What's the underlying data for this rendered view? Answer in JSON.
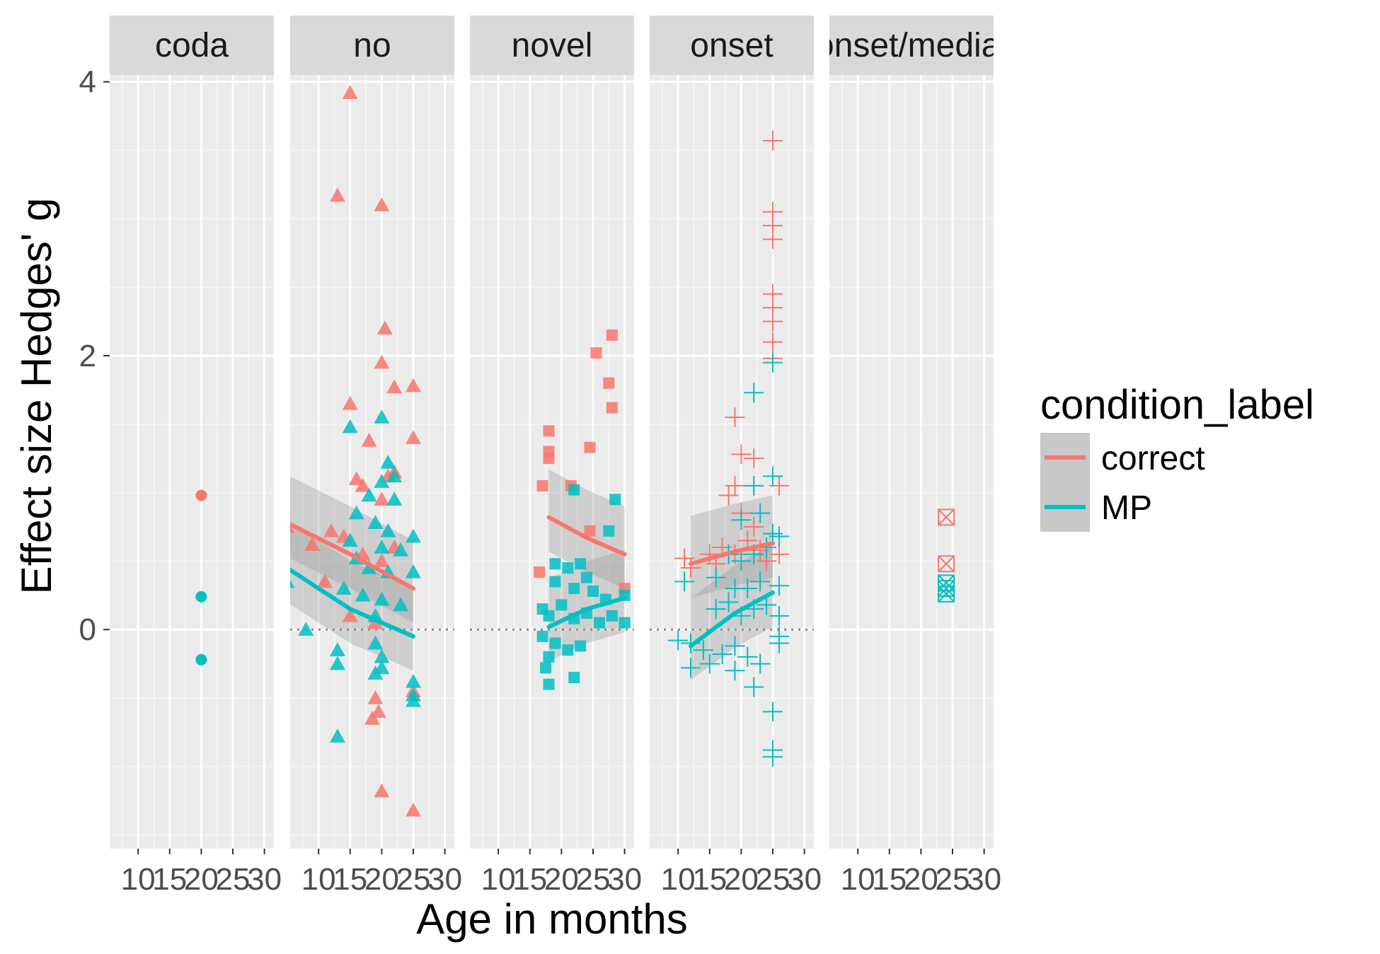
{
  "chart_data": {
    "type": "scatter",
    "facet_by": "condition",
    "facets": [
      "coda",
      "no",
      "novel",
      "onset",
      "onset/medial"
    ],
    "x_label": "Age in months",
    "y_label": "Effect size Hedges' g",
    "x_ticks": [
      10,
      15,
      20,
      25,
      30
    ],
    "y_ticks": [
      0,
      2,
      4
    ],
    "xlim": [
      5.5,
      31.5
    ],
    "ylim": [
      -1.6,
      4.05
    ],
    "grid": true,
    "legend": {
      "title": "condition_label",
      "position": "right",
      "entries": [
        {
          "label": "correct",
          "color": "#F8766D"
        },
        {
          "label": "MP",
          "color": "#00BFC4"
        }
      ]
    },
    "series": [
      {
        "name": "correct",
        "color": "#F8766D",
        "panels": {
          "coda": {
            "shape": "circle",
            "points": [
              [
                20,
                0.98
              ]
            ]
          },
          "no": {
            "shape": "triangle",
            "points": [
              [
                15,
                3.92
              ],
              [
                13,
                3.17
              ],
              [
                20,
                3.1
              ],
              [
                20.5,
                2.2
              ],
              [
                20,
                1.95
              ],
              [
                22,
                1.77
              ],
              [
                25,
                1.78
              ],
              [
                25,
                1.4
              ],
              [
                15,
                1.65
              ],
              [
                18,
                1.38
              ],
              [
                16,
                1.1
              ],
              [
                17,
                1.05
              ],
              [
                20,
                0.95
              ],
              [
                21,
                1.12
              ],
              [
                22,
                1.15
              ],
              [
                5,
                0.75
              ],
              [
                9,
                0.62
              ],
              [
                12,
                0.72
              ],
              [
                14,
                0.68
              ],
              [
                17,
                0.55
              ],
              [
                20,
                0.5
              ],
              [
                22,
                0.6
              ],
              [
                11,
                0.35
              ],
              [
                15,
                0.1
              ],
              [
                19,
                0.05
              ],
              [
                19,
                -0.5
              ],
              [
                19.5,
                -0.6
              ],
              [
                18.5,
                -0.65
              ],
              [
                25,
                -0.45
              ],
              [
                20,
                -1.18
              ],
              [
                25,
                -1.32
              ]
            ]
          },
          "novel": {
            "shape": "square",
            "points": [
              [
                18,
                1.45
              ],
              [
                18,
                1.3
              ],
              [
                18,
                1.25
              ],
              [
                25.5,
                2.02
              ],
              [
                28,
                2.15
              ],
              [
                27.5,
                1.8
              ],
              [
                28,
                1.62
              ],
              [
                24.5,
                1.33
              ],
              [
                17,
                1.05
              ],
              [
                21.5,
                1.05
              ],
              [
                16.5,
                0.42
              ],
              [
                24.5,
                0.72
              ],
              [
                30,
                0.3
              ]
            ]
          },
          "onset": {
            "shape": "plus",
            "points": [
              [
                25,
                3.57
              ],
              [
                25,
                3.05
              ],
              [
                25,
                2.95
              ],
              [
                25,
                2.85
              ],
              [
                25,
                2.45
              ],
              [
                25,
                2.35
              ],
              [
                25,
                2.25
              ],
              [
                25,
                2.1
              ],
              [
                25,
                1.98
              ],
              [
                19,
                1.55
              ],
              [
                20,
                1.28
              ],
              [
                22,
                1.25
              ],
              [
                19,
                1.05
              ],
              [
                18,
                0.98
              ],
              [
                20,
                0.85
              ],
              [
                22,
                0.75
              ],
              [
                11,
                0.52
              ],
              [
                15,
                0.55
              ],
              [
                17,
                0.6
              ],
              [
                19,
                0.55
              ],
              [
                21,
                0.65
              ],
              [
                23,
                0.58
              ],
              [
                25,
                0.7
              ],
              [
                26,
                1.05
              ],
              [
                26,
                0.55
              ],
              [
                12,
                0.45
              ],
              [
                16,
                0.48
              ],
              [
                24,
                0.5
              ]
            ]
          },
          "onset/medial": {
            "shape": "square-cross",
            "points": [
              [
                24,
                0.82
              ],
              [
                24,
                0.48
              ]
            ]
          }
        },
        "trend": {
          "no": [
            [
              5,
              0.78
            ],
            [
              15,
              0.55
            ],
            [
              25,
              0.3
            ]
          ],
          "novel": [
            [
              18,
              0.82
            ],
            [
              24,
              0.67
            ],
            [
              30,
              0.55
            ]
          ],
          "onset": [
            [
              12,
              0.48
            ],
            [
              19,
              0.57
            ],
            [
              25,
              0.63
            ]
          ]
        }
      },
      {
        "name": "MP",
        "color": "#00BFC4",
        "panels": {
          "coda": {
            "shape": "circle",
            "points": [
              [
                20,
                0.24
              ],
              [
                20,
                -0.22
              ]
            ]
          },
          "no": {
            "shape": "triangle",
            "points": [
              [
                20,
                1.55
              ],
              [
                15,
                1.48
              ],
              [
                21,
                1.22
              ],
              [
                22,
                1.12
              ],
              [
                20,
                1.08
              ],
              [
                18,
                0.98
              ],
              [
                22,
                0.95
              ],
              [
                16,
                0.85
              ],
              [
                19,
                0.78
              ],
              [
                21,
                0.72
              ],
              [
                25,
                0.68
              ],
              [
                15,
                0.65
              ],
              [
                20,
                0.6
              ],
              [
                23,
                0.58
              ],
              [
                16,
                0.52
              ],
              [
                18,
                0.45
              ],
              [
                21,
                0.42
              ],
              [
                25,
                0.42
              ],
              [
                5,
                0.35
              ],
              [
                14,
                0.3
              ],
              [
                17,
                0.25
              ],
              [
                20,
                0.22
              ],
              [
                23,
                0.18
              ],
              [
                19,
                0.1
              ],
              [
                8,
                0.0
              ],
              [
                13,
                -0.15
              ],
              [
                19,
                -0.1
              ],
              [
                20,
                -0.2
              ],
              [
                20,
                -0.28
              ],
              [
                19,
                -0.32
              ],
              [
                13,
                -0.25
              ],
              [
                25,
                -0.38
              ],
              [
                25,
                -0.48
              ],
              [
                25,
                -0.52
              ],
              [
                13,
                -0.78
              ]
            ]
          },
          "novel": {
            "shape": "square",
            "points": [
              [
                22,
                1.02
              ],
              [
                28.5,
                0.95
              ],
              [
                27.5,
                0.72
              ],
              [
                19,
                0.48
              ],
              [
                21,
                0.45
              ],
              [
                23,
                0.48
              ],
              [
                24,
                0.38
              ],
              [
                19,
                0.35
              ],
              [
                22,
                0.3
              ],
              [
                25,
                0.28
              ],
              [
                27,
                0.22
              ],
              [
                30,
                0.25
              ],
              [
                17,
                0.15
              ],
              [
                18,
                0.1
              ],
              [
                20,
                0.18
              ],
              [
                22,
                0.08
              ],
              [
                24,
                0.12
              ],
              [
                26,
                0.05
              ],
              [
                28,
                0.1
              ],
              [
                30,
                0.05
              ],
              [
                17,
                -0.05
              ],
              [
                19,
                -0.1
              ],
              [
                21,
                -0.15
              ],
              [
                18,
                -0.2
              ],
              [
                23,
                -0.12
              ],
              [
                17.5,
                -0.28
              ],
              [
                22,
                -0.35
              ],
              [
                18,
                -0.4
              ]
            ]
          },
          "onset": {
            "shape": "plus",
            "points": [
              [
                25,
                1.95
              ],
              [
                22,
                1.73
              ],
              [
                25,
                1.12
              ],
              [
                22,
                1.05
              ],
              [
                20,
                0.8
              ],
              [
                23,
                0.85
              ],
              [
                25,
                0.7
              ],
              [
                26,
                0.68
              ],
              [
                18,
                0.55
              ],
              [
                20,
                0.5
              ],
              [
                22,
                0.55
              ],
              [
                24,
                0.6
              ],
              [
                11,
                0.35
              ],
              [
                16,
                0.38
              ],
              [
                19,
                0.3
              ],
              [
                21,
                0.3
              ],
              [
                23,
                0.35
              ],
              [
                26,
                0.32
              ],
              [
                16,
                0.15
              ],
              [
                18,
                0.2
              ],
              [
                20,
                0.1
              ],
              [
                22,
                0.15
              ],
              [
                24,
                0.18
              ],
              [
                26,
                0.1
              ],
              [
                10,
                -0.08
              ],
              [
                12,
                -0.1
              ],
              [
                14,
                -0.15
              ],
              [
                17,
                -0.18
              ],
              [
                19,
                -0.12
              ],
              [
                21,
                -0.2
              ],
              [
                23,
                -0.25
              ],
              [
                26,
                -0.05
              ],
              [
                26,
                -0.1
              ],
              [
                15,
                -0.25
              ],
              [
                19,
                -0.3
              ],
              [
                12,
                -0.28
              ],
              [
                22,
                -0.42
              ],
              [
                25,
                -0.6
              ],
              [
                25,
                -0.88
              ],
              [
                25,
                -0.93
              ]
            ]
          },
          "onset/medial": {
            "shape": "square-cross",
            "points": [
              [
                24,
                0.34
              ],
              [
                24,
                0.3
              ],
              [
                24,
                0.26
              ]
            ]
          }
        },
        "trend": {
          "no": [
            [
              5,
              0.45
            ],
            [
              15,
              0.15
            ],
            [
              25,
              -0.05
            ]
          ],
          "novel": [
            [
              18,
              0.02
            ],
            [
              24,
              0.15
            ],
            [
              30,
              0.23
            ]
          ],
          "onset": [
            [
              12,
              -0.12
            ],
            [
              19,
              0.12
            ],
            [
              25,
              0.27
            ]
          ]
        }
      }
    ],
    "reference_line": {
      "y": 0,
      "style": "dotted",
      "panels": [
        "no",
        "novel",
        "onset"
      ]
    }
  }
}
